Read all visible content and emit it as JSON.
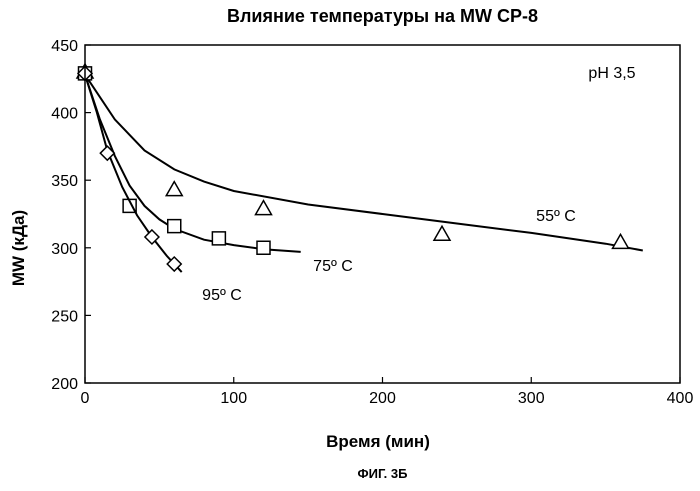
{
  "chart_data": {
    "type": "scatter",
    "title": "Влияние температуры на MW CP-8",
    "caption": "ФИГ. 3Б",
    "xlabel": "Время (мин)",
    "ylabel": "MW (кДа)",
    "xlim": [
      0,
      400
    ],
    "ylim": [
      200,
      450
    ],
    "xticks": [
      0,
      100,
      200,
      300,
      400
    ],
    "yticks": [
      200,
      250,
      300,
      350,
      400,
      450
    ],
    "grid": false,
    "annotation": "pH 3,5",
    "series": [
      {
        "name": "55º C",
        "marker": "triangle",
        "points": [
          [
            0,
            430
          ],
          [
            60,
            343
          ],
          [
            120,
            329
          ],
          [
            240,
            310
          ],
          [
            360,
            304
          ]
        ],
        "curve": [
          [
            0,
            428
          ],
          [
            20,
            395
          ],
          [
            40,
            372
          ],
          [
            60,
            358
          ],
          [
            80,
            349
          ],
          [
            100,
            342
          ],
          [
            150,
            332
          ],
          [
            200,
            325
          ],
          [
            250,
            318
          ],
          [
            300,
            311
          ],
          [
            350,
            303
          ],
          [
            375,
            298
          ]
        ]
      },
      {
        "name": "75º C",
        "marker": "square",
        "points": [
          [
            0,
            429
          ],
          [
            30,
            331
          ],
          [
            60,
            316
          ],
          [
            90,
            307
          ],
          [
            120,
            300
          ]
        ],
        "curve": [
          [
            0,
            428
          ],
          [
            10,
            395
          ],
          [
            20,
            368
          ],
          [
            30,
            346
          ],
          [
            40,
            331
          ],
          [
            50,
            321
          ],
          [
            60,
            314
          ],
          [
            80,
            306
          ],
          [
            100,
            302
          ],
          [
            120,
            299
          ],
          [
            145,
            297
          ]
        ]
      },
      {
        "name": "95º C",
        "marker": "diamond",
        "points": [
          [
            0,
            429
          ],
          [
            15,
            370
          ],
          [
            45,
            308
          ],
          [
            60,
            288
          ]
        ],
        "curve": [
          [
            0,
            428
          ],
          [
            8,
            400
          ],
          [
            15,
            372
          ],
          [
            25,
            345
          ],
          [
            35,
            324
          ],
          [
            45,
            308
          ],
          [
            55,
            294
          ],
          [
            65,
            282
          ]
        ]
      }
    ]
  }
}
